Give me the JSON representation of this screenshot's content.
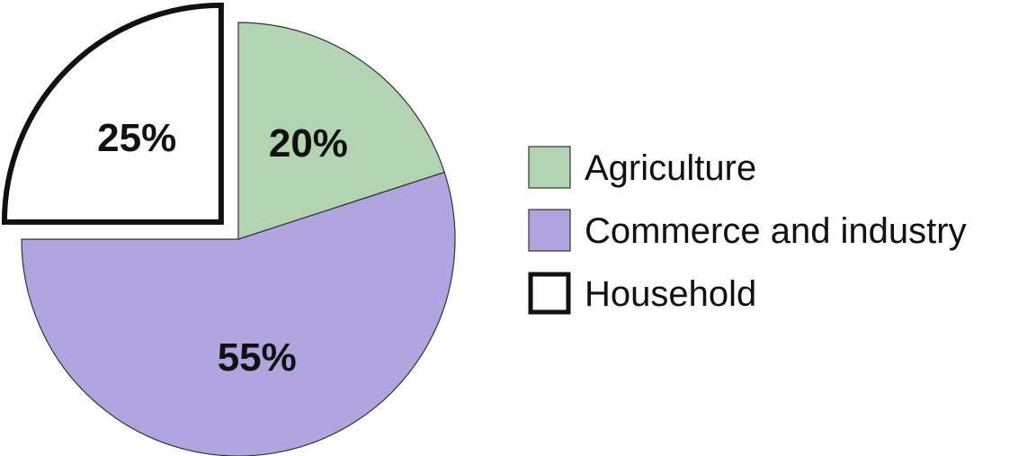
{
  "chart_data": {
    "type": "pie",
    "title": "",
    "exploded_slice": "Household",
    "legend_placement": "right",
    "slices": [
      {
        "label": "Agriculture",
        "value": 20,
        "display": "20%",
        "color": "#b3d4b1",
        "stroke": "#333333"
      },
      {
        "label": "Commerce and industry",
        "value": 55,
        "display": "55%",
        "color": "#b1a5e0",
        "stroke": "#333333"
      },
      {
        "label": "Household",
        "value": 25,
        "display": "25%",
        "color": "#ffffff",
        "stroke": "#111111"
      }
    ]
  }
}
